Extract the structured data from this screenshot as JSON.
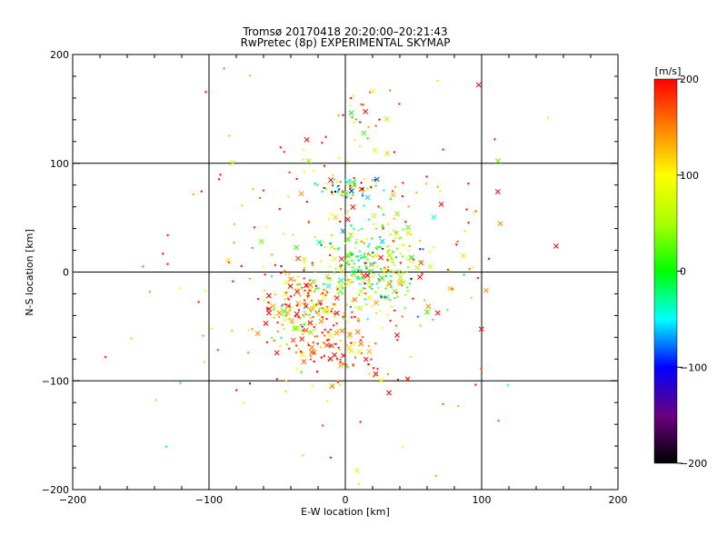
{
  "chart_data": {
    "type": "scatter",
    "title": "Tromsø 20170418 20:20:00–20:21:43",
    "subtitle": "RwPretec (8p) EXPERIMENTAL SKYMAP",
    "xlabel": "E-W location [km]",
    "ylabel": "N-S location [km]",
    "xlim": [
      -200,
      200
    ],
    "ylim": [
      -200,
      200
    ],
    "x_ticks": [
      "−200",
      "−100",
      "0",
      "100",
      "200"
    ],
    "y_ticks": [
      "−200",
      "−100",
      "0",
      "100",
      "200"
    ],
    "grid": true,
    "colorbar": {
      "label": "[m/s]",
      "range": [
        -200,
        200
      ],
      "ticks": [
        "200",
        "100",
        "0",
        "−100",
        "−200"
      ]
    },
    "clusters": [
      {
        "cx": 5,
        "cy": 78,
        "sx": 12,
        "sy": 5,
        "n": 60,
        "vmean": 10,
        "vspread": 120
      },
      {
        "cx": 15,
        "cy": 5,
        "sx": 22,
        "sy": 20,
        "n": 260,
        "vmean": 25,
        "vspread": 60
      },
      {
        "cx": -30,
        "cy": -30,
        "sx": 18,
        "sy": 18,
        "n": 160,
        "vmean": 150,
        "vspread": 70
      },
      {
        "cx": -10,
        "cy": -70,
        "sx": 20,
        "sy": 15,
        "n": 80,
        "vmean": 170,
        "vspread": 50
      },
      {
        "cx": 0,
        "cy": 0,
        "sx": 60,
        "sy": 75,
        "n": 280,
        "vmean": 140,
        "vspread": 90
      },
      {
        "cx": 10,
        "cy": 140,
        "sx": 15,
        "sy": 12,
        "n": 25,
        "vmean": 80,
        "vspread": 80
      }
    ]
  }
}
